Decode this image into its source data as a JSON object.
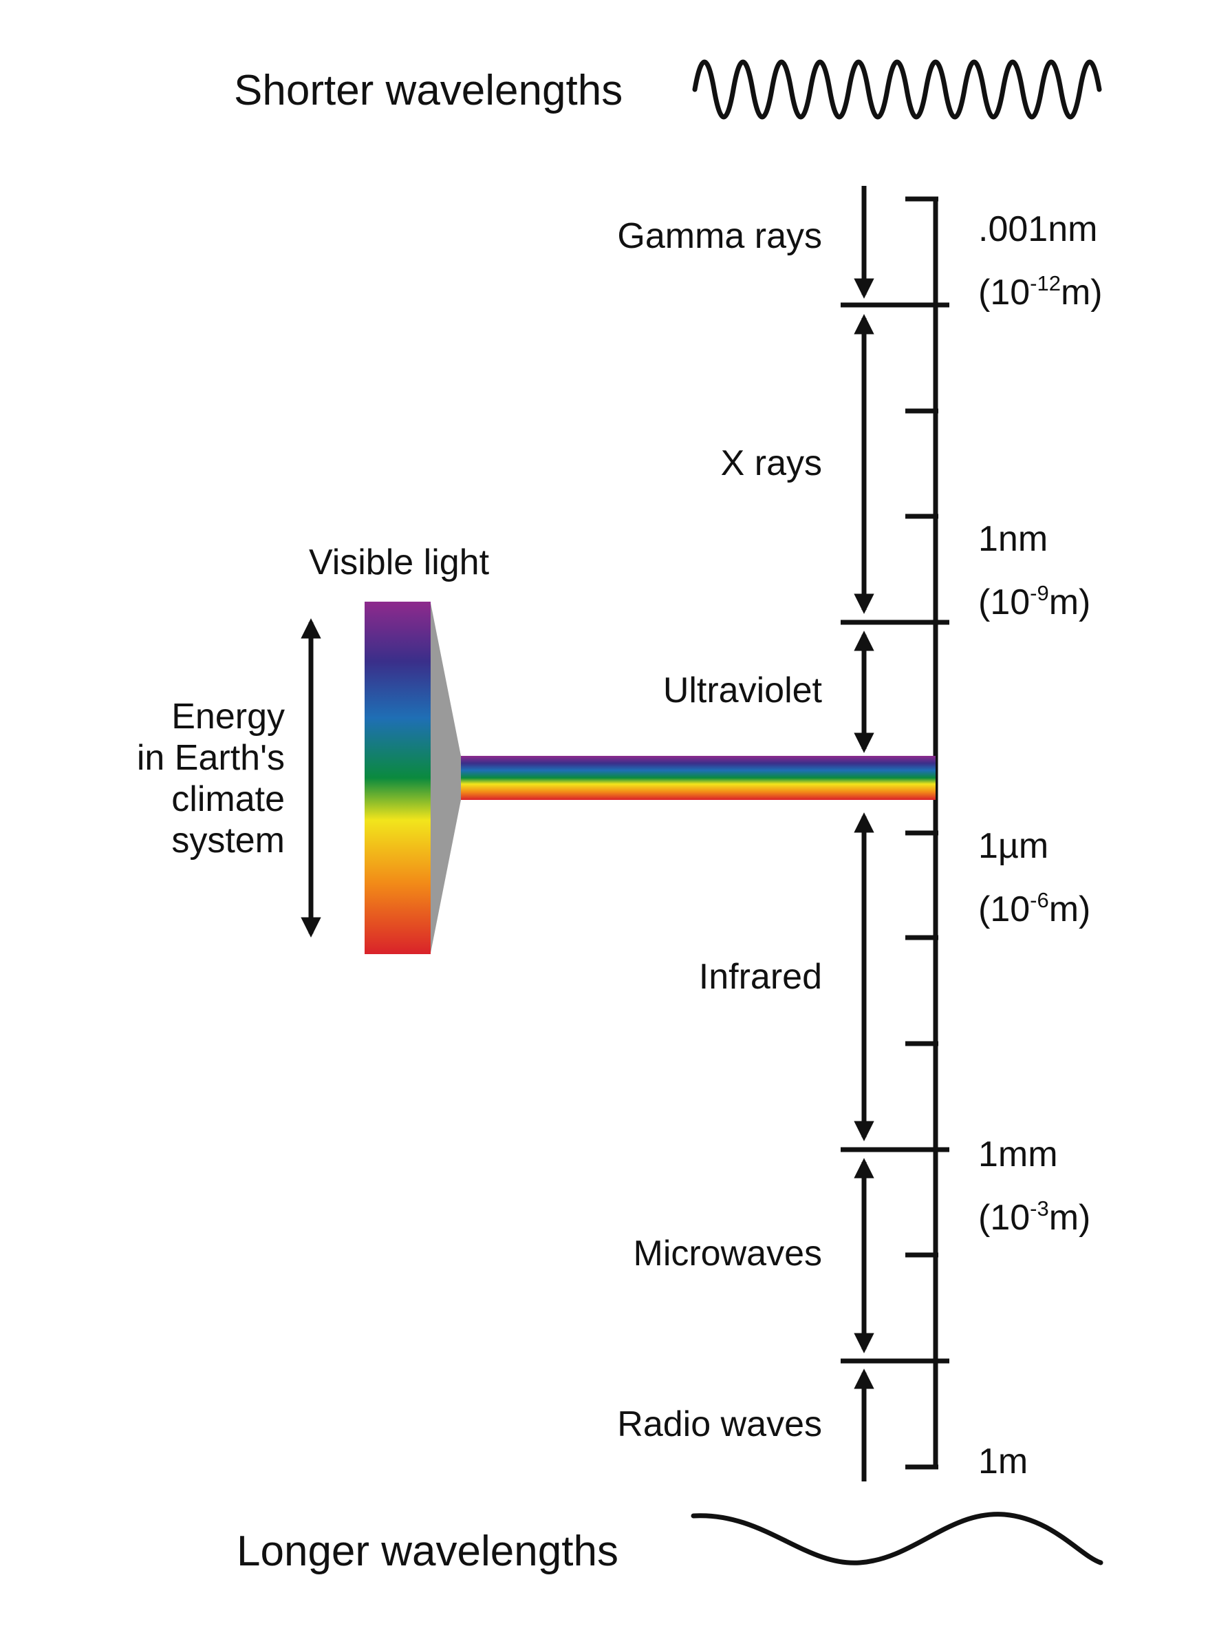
{
  "header": {
    "shorter_label": "Shorter wavelengths"
  },
  "footer": {
    "longer_label": "Longer wavelengths"
  },
  "bands": [
    {
      "key": "gamma",
      "label": "Gamma rays"
    },
    {
      "key": "xray",
      "label": "X rays"
    },
    {
      "key": "uv",
      "label": "Ultraviolet"
    },
    {
      "key": "ir",
      "label": "Infrared"
    },
    {
      "key": "micro",
      "label": "Microwaves"
    },
    {
      "key": "radio",
      "label": "Radio waves"
    }
  ],
  "scale": [
    {
      "value": ".001nm",
      "paren_open": "(10",
      "exponent": "-12",
      "paren_close": "m)"
    },
    {
      "value": "1nm",
      "paren_open": "(10",
      "exponent": "-9",
      "paren_close": "m)"
    },
    {
      "value": "1µm",
      "paren_open": "(10",
      "exponent": "-6",
      "paren_close": "m)"
    },
    {
      "value": "1mm",
      "paren_open": "(10",
      "exponent": "-3",
      "paren_close": "m)"
    },
    {
      "value": "1m"
    }
  ],
  "visible": {
    "label": "Visible light",
    "energy_lines": [
      "Energy",
      "in Earth's",
      "climate",
      "system"
    ],
    "spectrum_colors": [
      "#8e2a8c",
      "#3a2f8a",
      "#1f6fb5",
      "#0b8a3e",
      "#f2e51c",
      "#f28a18",
      "#d9222a"
    ]
  },
  "colors": {
    "line": "#111111",
    "prism_shadow": "#9a9a9a"
  }
}
